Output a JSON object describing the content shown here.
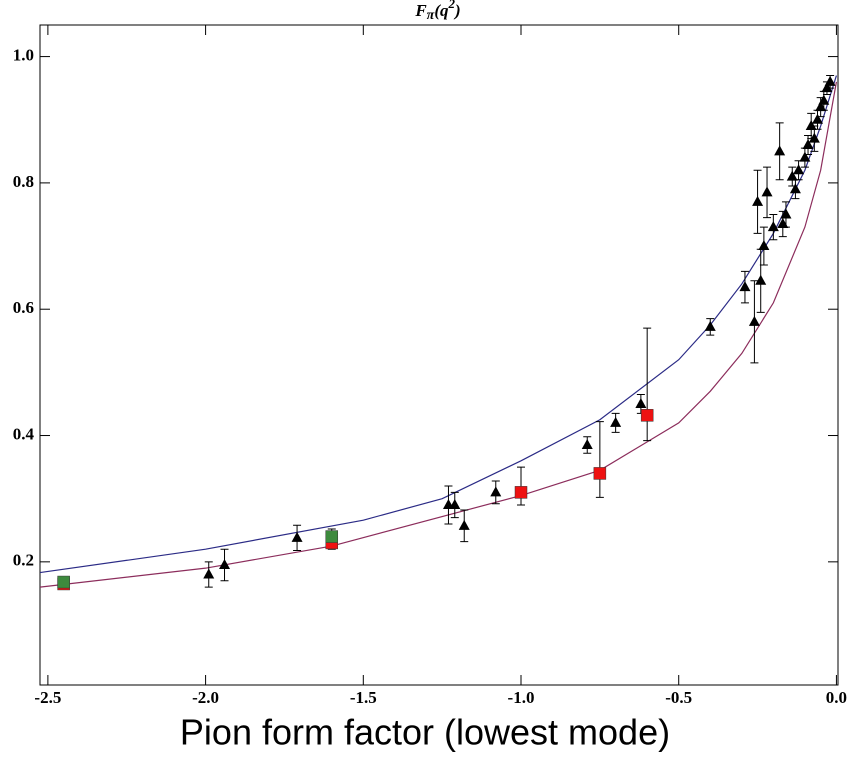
{
  "chart_data": {
    "type": "scatter",
    "title": {
      "base": "F",
      "subscript": "π",
      "argument": "(q",
      "superscript": "2",
      "close": ")"
    },
    "caption": "Pion form factor (lowest mode)",
    "xlim": [
      -2.525,
      0.005
    ],
    "ylim": [
      0.005,
      1.05
    ],
    "xticks": [
      {
        "value": -2.5,
        "label": "-2.5"
      },
      {
        "value": -2.0,
        "label": "-2.0"
      },
      {
        "value": -1.5,
        "label": "-1.5"
      },
      {
        "value": -1.0,
        "label": "-1.0"
      },
      {
        "value": -0.5,
        "label": "-0.5"
      },
      {
        "value": 0,
        "label": "0.0"
      }
    ],
    "yticks": [
      0.2,
      0.4,
      0.6,
      0.8,
      {
        "value": 1,
        "label": "1.0"
      }
    ],
    "grid": false,
    "curves": [
      {
        "color": "#2b2b86",
        "x": [
          -2.525,
          -2.0,
          -1.5,
          -1.25,
          -1.0,
          -0.75,
          -0.5,
          -0.4,
          -0.3,
          -0.2,
          -0.1,
          -0.05,
          0
        ],
        "values": [
          0.183,
          0.22,
          0.266,
          0.3,
          0.36,
          0.425,
          0.52,
          0.575,
          0.64,
          0.72,
          0.82,
          0.89,
          0.97
        ]
      },
      {
        "color": "#8c2d5c",
        "x": [
          -2.525,
          -2.0,
          -1.6,
          -1.0,
          -0.75,
          -0.6,
          -0.5,
          -0.4,
          -0.3,
          -0.2,
          -0.1,
          -0.05,
          0
        ],
        "values": [
          0.16,
          0.19,
          0.225,
          0.305,
          0.345,
          0.39,
          0.42,
          0.47,
          0.53,
          0.61,
          0.73,
          0.82,
          0.96
        ]
      }
    ],
    "series": [
      {
        "marker": "triangle",
        "color": "#000000",
        "x": [
          -1.99,
          -1.94,
          -1.71,
          -1.23,
          -1.21,
          -1.18,
          -1.08,
          -0.79,
          -0.7,
          -0.62,
          -0.4,
          -0.29,
          -0.26,
          -0.25,
          -0.24,
          -0.23,
          -0.22,
          -0.2,
          -0.18,
          -0.17,
          -0.16,
          -0.14,
          -0.13,
          -0.12,
          -0.1,
          -0.09,
          -0.08,
          -0.07,
          -0.06,
          -0.05,
          -0.04,
          -0.03,
          -0.02
        ],
        "values": [
          0.18,
          0.195,
          0.238,
          0.29,
          0.29,
          0.257,
          0.31,
          0.385,
          0.42,
          0.45,
          0.572,
          0.635,
          0.58,
          0.77,
          0.645,
          0.7,
          0.785,
          0.73,
          0.85,
          0.735,
          0.75,
          0.81,
          0.79,
          0.82,
          0.84,
          0.86,
          0.89,
          0.87,
          0.9,
          0.92,
          0.93,
          0.95,
          0.96
        ],
        "err_low": [
          0.02,
          0.025,
          0.02,
          0.03,
          0.02,
          0.025,
          0.018,
          0.013,
          0.015,
          0.015,
          0.013,
          0.025,
          0.065,
          0.05,
          0.05,
          0.03,
          0.04,
          0.02,
          0.045,
          0.02,
          0.02,
          0.015,
          0.015,
          0.015,
          0.015,
          0.015,
          0.02,
          0.02,
          0.015,
          0.015,
          0.015,
          0.01,
          0.01
        ],
        "err_high": [
          0.02,
          0.025,
          0.02,
          0.03,
          0.02,
          0.025,
          0.018,
          0.013,
          0.015,
          0.015,
          0.013,
          0.025,
          0.065,
          0.05,
          0.05,
          0.03,
          0.04,
          0.02,
          0.045,
          0.02,
          0.02,
          0.015,
          0.015,
          0.015,
          0.015,
          0.015,
          0.02,
          0.02,
          0.015,
          0.015,
          0.015,
          0.01,
          0.01
        ]
      },
      {
        "marker": "square",
        "color": "#ee1111",
        "x": [
          -2.45,
          -1.6,
          -1.0,
          -0.75,
          -0.6
        ],
        "values": [
          0.165,
          0.23,
          0.31,
          0.34,
          0.432
        ],
        "err_low": [
          0.005,
          0.01,
          0.02,
          0.038,
          0.04
        ],
        "err_high": [
          0.005,
          0.01,
          0.04,
          0.082,
          0.138
        ]
      },
      {
        "marker": "square",
        "color": "#3d8a3d",
        "x": [
          -2.45,
          -1.6
        ],
        "values": [
          0.168,
          0.24
        ],
        "err_low": [
          0.006,
          0.012
        ],
        "err_high": [
          0.006,
          0.012
        ]
      }
    ]
  }
}
